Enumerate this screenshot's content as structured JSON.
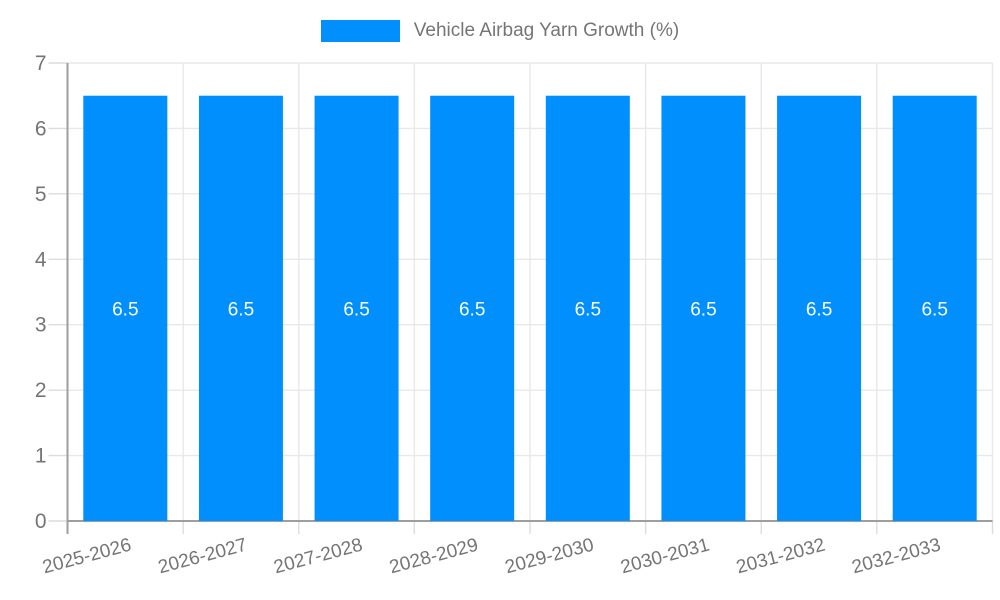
{
  "page": {
    "background_color": "#ffffff"
  },
  "legend": {
    "label": "Vehicle Airbag Yarn Growth (%)",
    "swatch_color": "#008ffc",
    "position": "top-center"
  },
  "chart_data": {
    "type": "bar",
    "title": "Vehicle Airbag Yarn Growth (%)",
    "categories": [
      "2025-2026",
      "2026-2027",
      "2027-2028",
      "2028-2029",
      "2029-2030",
      "2030-2031",
      "2031-2032",
      "2032-2033"
    ],
    "series": [
      {
        "name": "Vehicle Airbag Yarn Growth (%)",
        "color": "#008ffc",
        "values": [
          6.5,
          6.5,
          6.5,
          6.5,
          6.5,
          6.5,
          6.5,
          6.5
        ]
      }
    ],
    "bar_value_labels": [
      "6.5",
      "6.5",
      "6.5",
      "6.5",
      "6.5",
      "6.5",
      "6.5",
      "6.5"
    ],
    "xlabel": "",
    "ylabel": "",
    "ylim": [
      0,
      7
    ],
    "yticks": [
      0,
      1,
      2,
      3,
      4,
      5,
      6,
      7
    ],
    "grid": true,
    "legend_position": "top",
    "x_label_rotation_deg": -15,
    "colors": {
      "bar": "#008ffc",
      "bar_label_text": "#ffffff",
      "axis_text": "#757575",
      "gridline": "#e8e8e8",
      "tick": "#dcdcdc",
      "axis_line": "#9e9e9e"
    }
  }
}
